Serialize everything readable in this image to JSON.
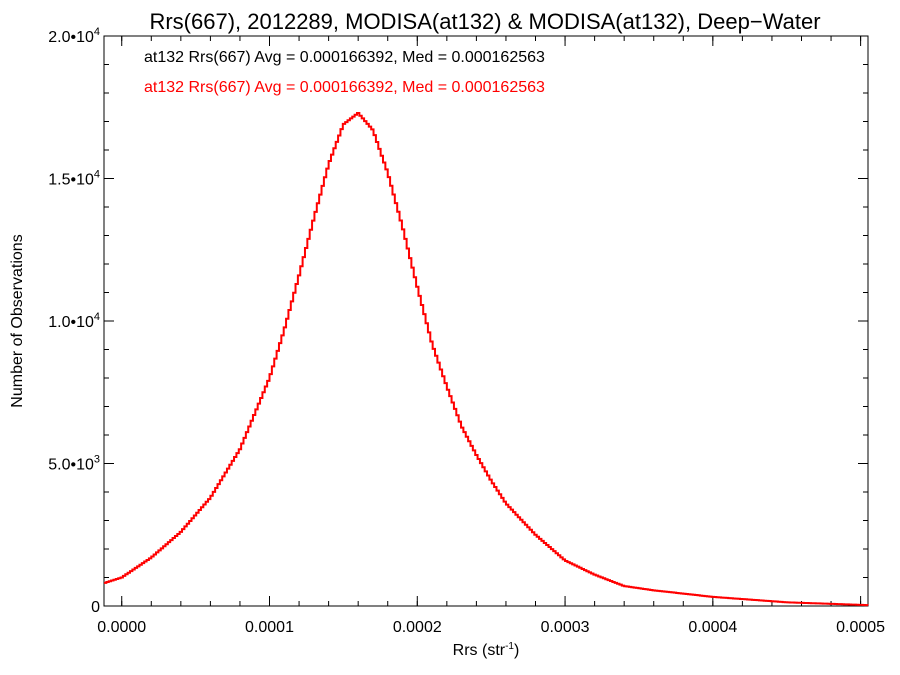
{
  "chart_data": {
    "type": "line",
    "title": "Rrs(667), 2012289, MODISA(at132) & MODISA(at132), Deep−Water",
    "xlabel": "Rrs (str",
    "xlabel_sup": "-1",
    "xlabel_end": ")",
    "ylabel": "Number of Observations",
    "xlim": [
      -1.2e-05,
      0.000505
    ],
    "ylim": [
      0,
      20000
    ],
    "x_ticks": [
      {
        "value": 0.0,
        "label": "0.0000"
      },
      {
        "value": 0.0001,
        "label": "0.0001"
      },
      {
        "value": 0.0002,
        "label": "0.0002"
      },
      {
        "value": 0.0003,
        "label": "0.0003"
      },
      {
        "value": 0.0004,
        "label": "0.0004"
      },
      {
        "value": 0.0005,
        "label": "0.0005"
      }
    ],
    "y_ticks": [
      {
        "value": 0,
        "label": "0",
        "sup": ""
      },
      {
        "value": 5000,
        "label": "5.0•10",
        "sup": "3"
      },
      {
        "value": 10000,
        "label": "1.0•10",
        "sup": "4"
      },
      {
        "value": 15000,
        "label": "1.5•10",
        "sup": "4"
      },
      {
        "value": 20000,
        "label": "2.0•10",
        "sup": "4"
      }
    ],
    "annotations": [
      {
        "text": "at132 Rrs(667) Avg = 0.000166392, Med = 0.000162563",
        "color": "#000000"
      },
      {
        "text": "at132 Rrs(667) Avg = 0.000166392, Med = 0.000162563",
        "color": "#ff0000"
      }
    ],
    "series": [
      {
        "color": "#ff0000",
        "style": "step",
        "x": [
          -1.2e-05,
          0.0,
          2e-05,
          4e-05,
          6e-05,
          8e-05,
          0.0001,
          0.00011,
          0.00012,
          0.00013,
          0.00014,
          0.00015,
          0.00016,
          0.00017,
          0.00018,
          0.00019,
          0.0002,
          0.00021,
          0.00022,
          0.00023,
          0.00024,
          0.00025,
          0.00026,
          0.00028,
          0.0003,
          0.00032,
          0.00034,
          0.00036,
          0.0004,
          0.00045,
          0.000505
        ],
        "y": [
          800,
          1000,
          1700,
          2600,
          3800,
          5500,
          8000,
          9700,
          11600,
          13600,
          15500,
          16900,
          17300,
          16700,
          15200,
          13300,
          11200,
          9200,
          7700,
          6300,
          5300,
          4400,
          3600,
          2500,
          1600,
          1100,
          700,
          550,
          320,
          130,
          30
        ]
      }
    ]
  }
}
